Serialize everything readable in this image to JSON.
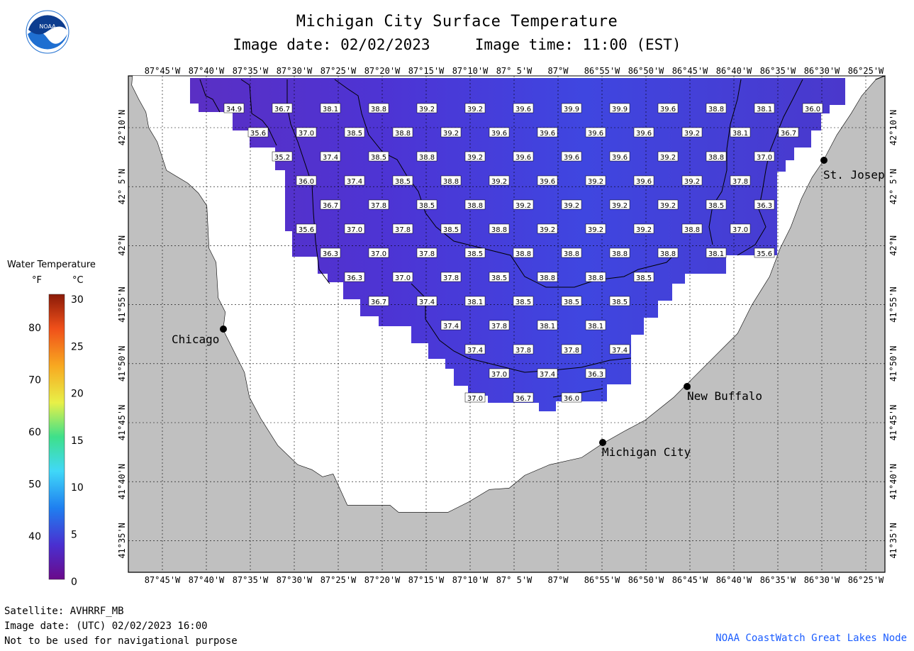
{
  "title": "Michigan City Surface Temperature",
  "subtitle": "Image date: 02/02/2023     Image time: 11:00 (EST)",
  "logo": {
    "text": "NOAA",
    "icon": "noaa-logo-icon",
    "color": "#1f6fd1"
  },
  "lon_labels": [
    "87°45'W",
    "87°40'W",
    "87°35'W",
    "87°30'W",
    "87°25'W",
    "87°20'W",
    "87°15'W",
    "87°10'W",
    "87° 5'W",
    "87°W",
    "86°55'W",
    "86°50'W",
    "86°45'W",
    "86°40'W",
    "86°35'W",
    "86°30'W",
    "86°25'W"
  ],
  "lat_labels": [
    "42°10'N",
    "42° 5'N",
    "42°N",
    "41°55'N",
    "41°50'N",
    "41°45'N",
    "41°40'N",
    "41°35'N"
  ],
  "cities": [
    {
      "name": "Chicago"
    },
    {
      "name": "St. Josep"
    },
    {
      "name": "New Buffalo"
    },
    {
      "name": "Michigan City"
    }
  ],
  "legend": {
    "title": "Water Temperature",
    "unit_f": "°F",
    "unit_c": "°C",
    "f_ticks": [
      "80",
      "70",
      "60",
      "50",
      "40"
    ],
    "c_ticks": [
      "30",
      "25",
      "20",
      "15",
      "10",
      "5",
      "0"
    ]
  },
  "colors": {
    "land": "#c0c0c0",
    "water_no_data": "#ffffff",
    "water_cold": "#4a36d8",
    "water_colder": "#5a2fc4",
    "grid": "#000000"
  },
  "temperature_grid": [
    [
      "34.9",
      "36.7",
      "38.1",
      "38.8",
      "39.2",
      "39.2",
      "39.6",
      "39.9",
      "39.9",
      "39.6",
      "38.8",
      "38.1",
      "36.0"
    ],
    [
      "35.6",
      "37.0",
      "38.5",
      "38.8",
      "39.2",
      "39.6",
      "39.6",
      "39.6",
      "39.6",
      "39.2",
      "38.1",
      "36.7"
    ],
    [
      "35.2",
      "37.4",
      "38.5",
      "38.8",
      "39.2",
      "39.6",
      "39.6",
      "39.6",
      "39.2",
      "38.8",
      "37.0"
    ],
    [
      "36.0",
      "37.4",
      "38.5",
      "38.8",
      "39.2",
      "39.6",
      "39.2",
      "39.6",
      "39.2",
      "37.8"
    ],
    [
      "36.7",
      "37.8",
      "38.5",
      "38.8",
      "39.2",
      "39.2",
      "39.2",
      "39.2",
      "38.5",
      "36.3"
    ],
    [
      "35.6",
      "37.0",
      "37.8",
      "38.5",
      "38.8",
      "39.2",
      "39.2",
      "39.2",
      "38.8",
      "37.0"
    ],
    [
      "36.3",
      "37.0",
      "37.8",
      "38.5",
      "38.8",
      "38.8",
      "38.8",
      "38.8",
      "38.1",
      "35.6"
    ],
    [
      "36.3",
      "37.0",
      "37.8",
      "38.5",
      "38.8",
      "38.8",
      "38.5"
    ],
    [
      "36.7",
      "37.4",
      "38.1",
      "38.5",
      "38.5",
      "38.5"
    ],
    [
      "37.4",
      "37.8",
      "38.1",
      "38.1"
    ],
    [
      "37.4",
      "37.8",
      "37.8",
      "37.4"
    ],
    [
      "37.0",
      "37.4",
      "36.3"
    ],
    [
      "37.0",
      "36.7",
      "36.0"
    ]
  ],
  "footer": {
    "satellite": "Satellite: AVHRRF_MB",
    "utc_date": "Image date: (UTC) 02/02/2023  16:00",
    "warning": "Not to be used for navigational purpose"
  },
  "credit": "NOAA CoastWatch Great Lakes Node"
}
